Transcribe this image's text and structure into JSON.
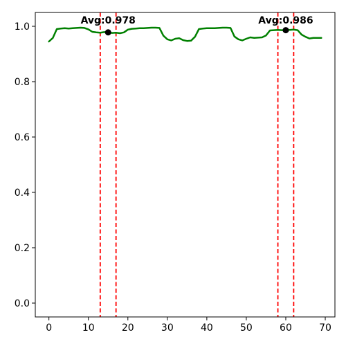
{
  "chart_data": {
    "type": "line",
    "title": "",
    "xlabel": "",
    "ylabel": "",
    "xlim": [
      -3.45,
      72.45
    ],
    "ylim": [
      -0.05,
      1.05
    ],
    "x_ticks": [
      0,
      10,
      20,
      30,
      40,
      50,
      60,
      70
    ],
    "x_tick_labels": [
      "0",
      "10",
      "20",
      "30",
      "40",
      "50",
      "60",
      "70"
    ],
    "y_ticks": [
      0.0,
      0.2,
      0.4,
      0.6,
      0.8,
      1.0
    ],
    "y_tick_labels": [
      "0.0",
      "0.2",
      "0.4",
      "0.6",
      "0.8",
      "1.0"
    ],
    "grid": false,
    "series": [
      {
        "color": "#008000",
        "x": [
          0,
          1,
          2,
          3,
          4,
          5,
          6,
          7,
          8,
          9,
          10,
          11,
          12,
          13,
          14,
          15,
          16,
          17,
          18,
          19,
          20,
          21,
          22,
          23,
          24,
          25,
          26,
          27,
          28,
          29,
          30,
          31,
          32,
          33,
          34,
          35,
          36,
          37,
          38,
          39,
          40,
          41,
          42,
          43,
          44,
          45,
          46,
          47,
          48,
          49,
          50,
          51,
          52,
          53,
          54,
          55,
          56,
          57,
          58,
          59,
          60,
          61,
          62,
          63,
          64,
          65,
          66,
          67,
          68,
          69
        ],
        "values": [
          0.945,
          0.958,
          0.99,
          0.992,
          0.993,
          0.992,
          0.993,
          0.994,
          0.995,
          0.994,
          0.989,
          0.98,
          0.978,
          0.977,
          0.979,
          0.978,
          0.976,
          0.977,
          0.975,
          0.978,
          0.988,
          0.991,
          0.992,
          0.993,
          0.993,
          0.994,
          0.995,
          0.995,
          0.994,
          0.966,
          0.953,
          0.949,
          0.955,
          0.957,
          0.95,
          0.947,
          0.948,
          0.962,
          0.99,
          0.992,
          0.993,
          0.993,
          0.993,
          0.994,
          0.995,
          0.995,
          0.994,
          0.963,
          0.953,
          0.949,
          0.955,
          0.96,
          0.958,
          0.959,
          0.96,
          0.967,
          0.985,
          0.986,
          0.987,
          0.986,
          0.986,
          0.987,
          0.988,
          0.986,
          0.97,
          0.962,
          0.956,
          0.958,
          0.958,
          0.958
        ]
      }
    ],
    "markers": [
      {
        "x": 15,
        "y": 0.978,
        "color": "#000000"
      },
      {
        "x": 60,
        "y": 0.986,
        "color": "#000000"
      }
    ],
    "vlines": [
      {
        "x": 13,
        "color": "#ff0000",
        "style": "dashed"
      },
      {
        "x": 17,
        "color": "#ff0000",
        "style": "dashed"
      },
      {
        "x": 58,
        "color": "#ff0000",
        "style": "dashed"
      },
      {
        "x": 62,
        "color": "#ff0000",
        "style": "dashed"
      }
    ],
    "annotations": [
      {
        "text": "Avg:0.978",
        "x": 15
      },
      {
        "text": "Avg:0.986",
        "x": 60
      }
    ]
  }
}
